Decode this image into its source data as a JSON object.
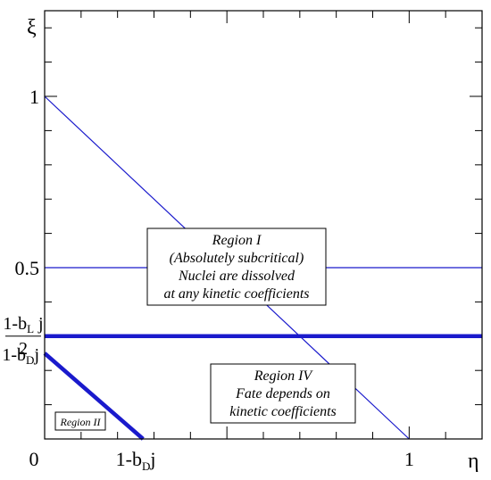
{
  "chart_data": {
    "type": "line",
    "xlabel": "η",
    "ylabel": "ξ",
    "xlim": [
      0,
      1.2
    ],
    "ylim": [
      0,
      1.25
    ],
    "xticks": [
      {
        "value": 0,
        "label": "0"
      },
      {
        "value": 0.25,
        "label_main": "1-b",
        "label_sub": "D",
        "label_tail": "j"
      },
      {
        "value": 1,
        "label": "1"
      }
    ],
    "yticks": [
      {
        "value": 0.5,
        "label": "0.5"
      },
      {
        "value": 1,
        "label": "1"
      }
    ],
    "ytick_fraction": {
      "value": 0.3,
      "numerator_main": "1-b",
      "numerator_sub": "L",
      "numerator_tail": " j",
      "denominator": "2"
    },
    "ytick_bdj": {
      "value": 0.25,
      "label_main": "1-b",
      "label_sub": "D",
      "label_tail": "j"
    },
    "series": [
      {
        "kind": "thin",
        "x": [
          0,
          1
        ],
        "y": [
          1,
          0
        ]
      },
      {
        "kind": "thin",
        "x": [
          0,
          1.2
        ],
        "y": [
          0.5,
          0.5
        ]
      },
      {
        "kind": "thick",
        "x": [
          0,
          1.2
        ],
        "y": [
          0.3,
          0.3
        ]
      },
      {
        "kind": "thick",
        "x": [
          0,
          0.27
        ],
        "y": [
          0.25,
          0
        ]
      }
    ],
    "annotations": {
      "region1": [
        "Region I",
        "(Absolutely subcritical)",
        "Nuclei are dissolved",
        "at any kinetic coefficients"
      ],
      "region4": [
        "Region IV",
        "Fate depends on",
        "kinetic coefficients"
      ],
      "region2": [
        "Region II"
      ]
    },
    "colors": {
      "line": "#1a1acc",
      "axes": "#000000"
    }
  }
}
